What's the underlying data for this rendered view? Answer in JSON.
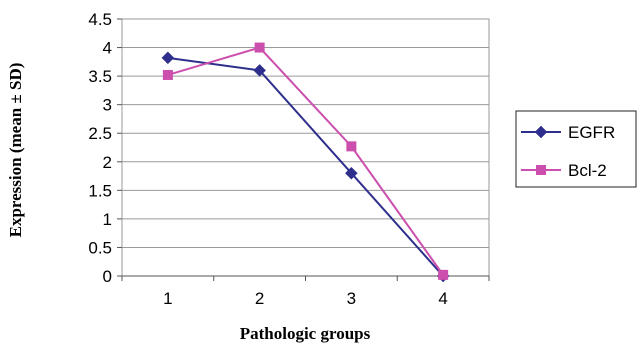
{
  "chart_data": {
    "type": "line",
    "categories": [
      "1",
      "2",
      "3",
      "4"
    ],
    "series": [
      {
        "name": "EGFR",
        "values": [
          3.82,
          3.6,
          1.8,
          0.0
        ],
        "color": "#2e2f8c",
        "marker": "diamond"
      },
      {
        "name": "Bcl-2",
        "values": [
          3.52,
          4.0,
          2.27,
          0.02
        ],
        "color": "#cc4fae",
        "marker": "square"
      }
    ],
    "title": "",
    "xlabel": "Pathologic groups",
    "ylabel": "Expression (mean ± SD)",
    "ylim": [
      0,
      4.5
    ],
    "yticks": [
      "0",
      "0.5",
      "1",
      "1.5",
      "2",
      "2.5",
      "3",
      "3.5",
      "4",
      "4.5"
    ],
    "grid": "horizontal",
    "legend_position": "right"
  }
}
